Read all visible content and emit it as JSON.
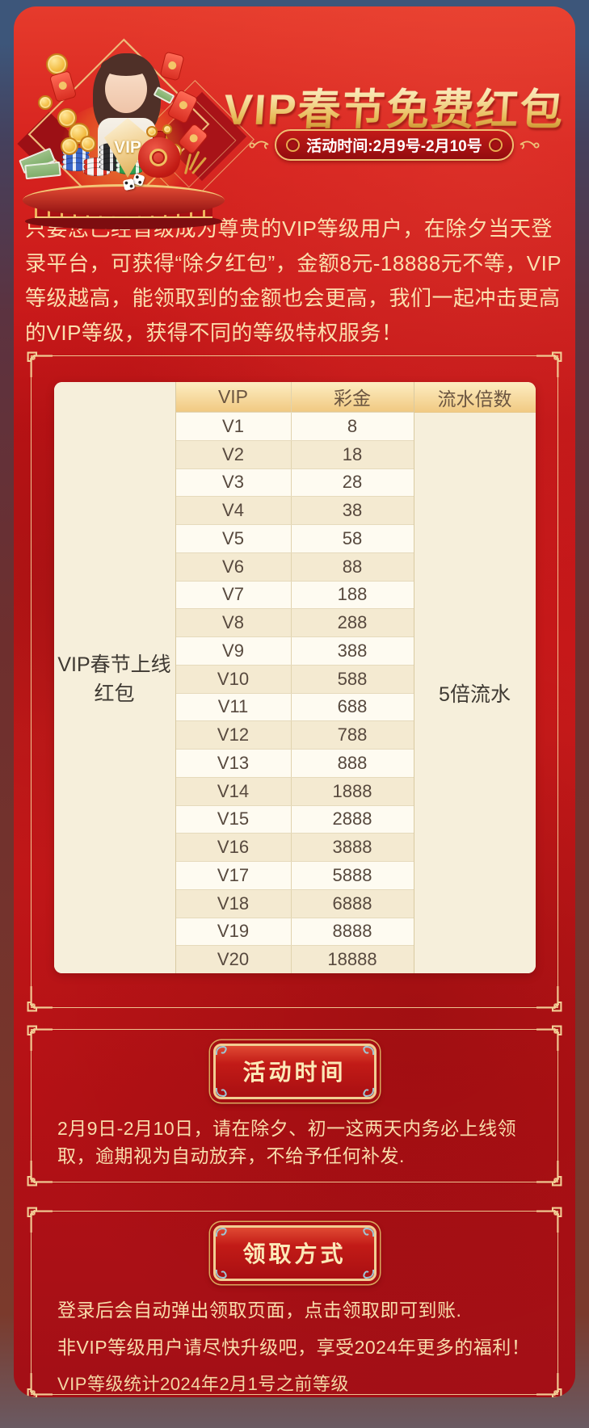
{
  "colors": {
    "page_bg_top": "#3d567a",
    "page_bg_bottom": "#6a5a62",
    "panel_red": "#c4161a",
    "panel_red_bright": "#e23a2c",
    "gold_line": "#f2cf96",
    "title_gold": "#f0cc74",
    "badge_bg": "#a50f12",
    "badge_border": "#efc072",
    "badge_text": "#ffffff",
    "cream_text": "#fbdfae",
    "table_header_gold": "#f1ca83",
    "table_bg_white": "#fefbf1",
    "table_bg_beige": "#f4ead1",
    "table_side_beige": "#f6efdb",
    "table_text": "#57493e",
    "plaque_corner_teal": "#9fc6d4"
  },
  "header": {
    "title": "VIP春节免费红包",
    "time_badge": "活动时间:2月9号-2月10号",
    "vip_badge_text": "VIP"
  },
  "intro": {
    "text": "只要您已经晋级成为尊贵的VIP等级用户，在除夕当天登录平台，可获得“除夕红包”，金额8元-18888元不等，VIP等级越高，能领取到的金额也会更高，我们一起冲击更高的VIP等级，获得不同的等级特权服务！"
  },
  "table": {
    "row_label": "VIP春节上线红包",
    "columns": [
      "VIP",
      "彩金",
      "流水倍数"
    ],
    "turnover": "5倍流水",
    "rows": [
      {
        "vip": "V1",
        "bonus": "8"
      },
      {
        "vip": "V2",
        "bonus": "18"
      },
      {
        "vip": "V3",
        "bonus": "28"
      },
      {
        "vip": "V4",
        "bonus": "38"
      },
      {
        "vip": "V5",
        "bonus": "58"
      },
      {
        "vip": "V6",
        "bonus": "88"
      },
      {
        "vip": "V7",
        "bonus": "188"
      },
      {
        "vip": "V8",
        "bonus": "288"
      },
      {
        "vip": "V9",
        "bonus": "388"
      },
      {
        "vip": "V10",
        "bonus": "588"
      },
      {
        "vip": "V11",
        "bonus": "688"
      },
      {
        "vip": "V12",
        "bonus": "788"
      },
      {
        "vip": "V13",
        "bonus": "888"
      },
      {
        "vip": "V14",
        "bonus": "1888"
      },
      {
        "vip": "V15",
        "bonus": "2888"
      },
      {
        "vip": "V16",
        "bonus": "3888"
      },
      {
        "vip": "V17",
        "bonus": "5888"
      },
      {
        "vip": "V18",
        "bonus": "6888"
      },
      {
        "vip": "V19",
        "bonus": "8888"
      },
      {
        "vip": "V20",
        "bonus": "18888"
      }
    ]
  },
  "sections": [
    {
      "title": "活动时间",
      "lines": [
        "2月9日-2月10日，请在除夕、初一这两天内务必上线领取，逾期视为自动放弃，不给予任何补发."
      ]
    },
    {
      "title": "领取方式",
      "lines": [
        "登录后会自动弹出领取页面，点击领取即可到账.",
        "非VIP等级用户请尽快升级吧，享受2024年更多的福利！"
      ],
      "note": "VIP等级统计2024年2月1号之前等级"
    }
  ],
  "icons": {
    "frame-corner-icon": "chinese-knot-corner",
    "plaque-corner-icon": "teal-curl",
    "swirl-ornament-icon": "gold-swirl",
    "ring-ornament-icon": "gold-ring",
    "vip-badge-icon": "gold-vip-shield",
    "diamond-frame-icon": "gold-diamond-outline",
    "coin-icon": "gold-coin",
    "red-envelope-icon": "red-envelope",
    "poker-chip-icon": "poker-chip-stack",
    "dice-icon": "white-dice",
    "money-bag-icon": "red-money-pouch",
    "banknote-icon": "dollar-bills",
    "podium-icon": "red-stage"
  }
}
